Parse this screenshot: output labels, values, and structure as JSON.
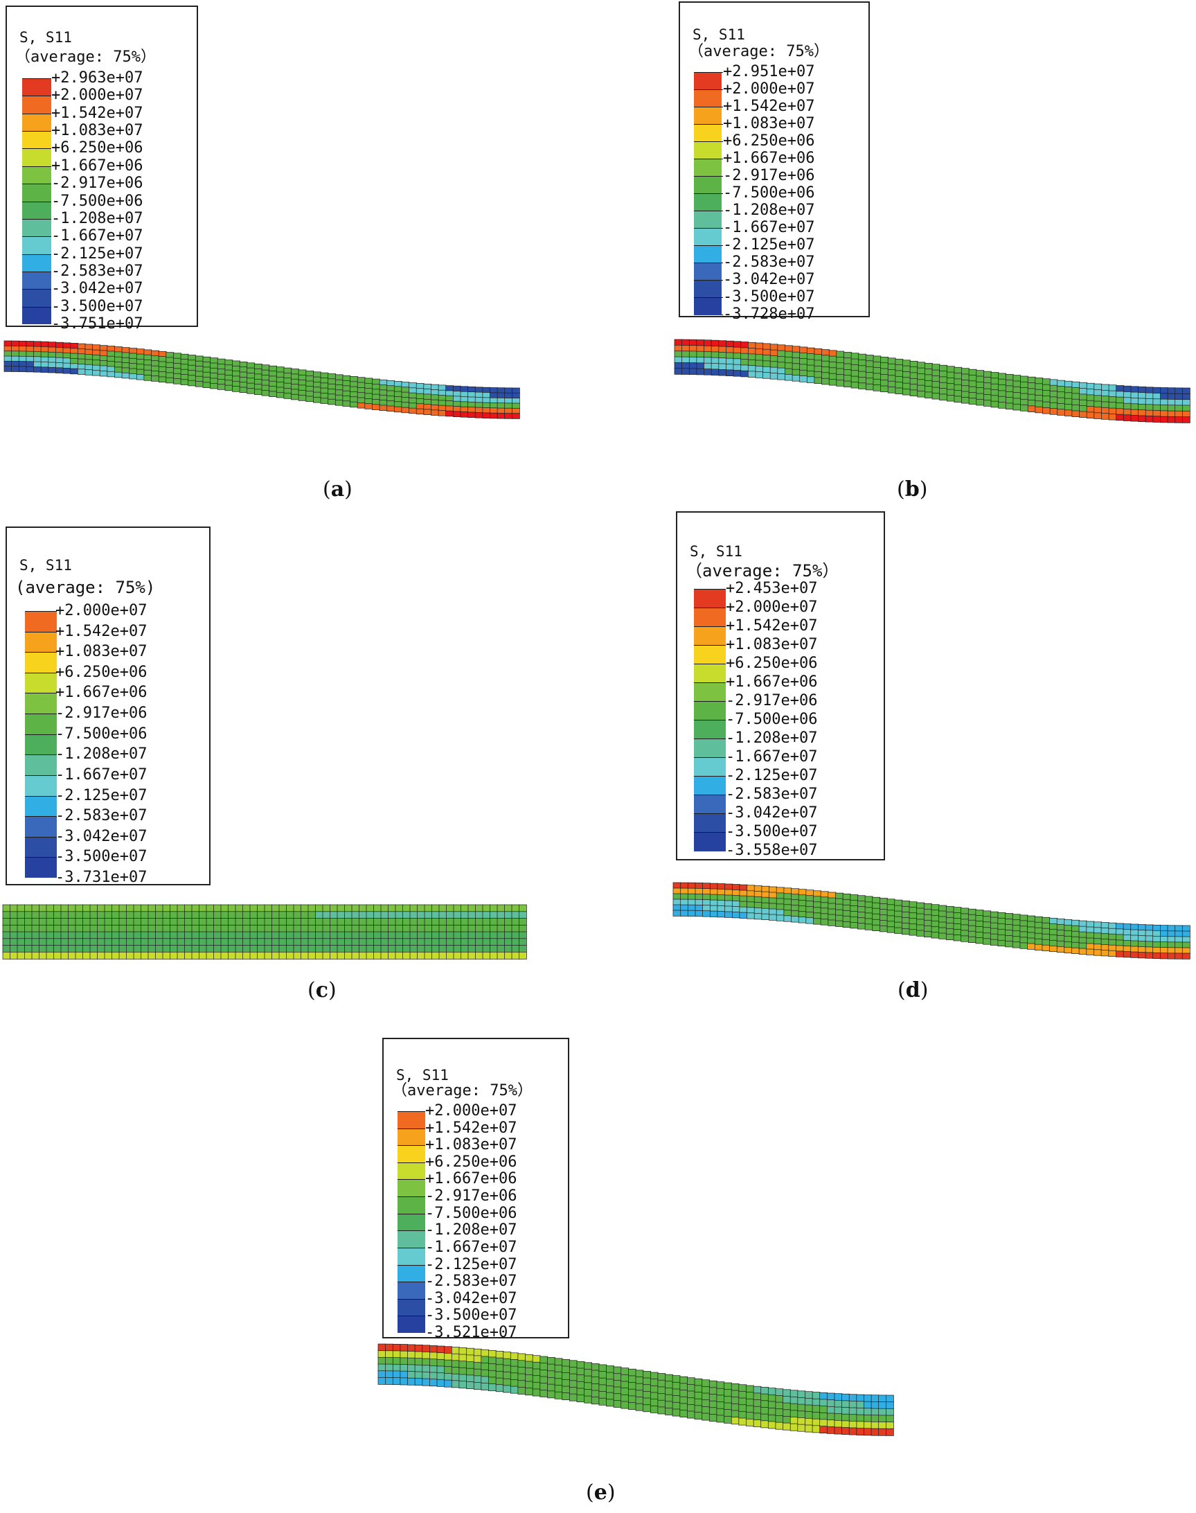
{
  "colors": [
    "#e8161b",
    "#e33a22",
    "#f06a22",
    "#f7a21d",
    "#f8d31e",
    "#c8dc2d",
    "#7ec241",
    "#5db345",
    "#4dae5c",
    "#5fbf9c",
    "#66cbd0",
    "#31aee3",
    "#3a68ba",
    "#2c4fa5",
    "#2741a0"
  ],
  "panels": [
    {
      "id": "a",
      "legend": {
        "title": "S, S11",
        "subtitle": "（average:  75%）",
        "labels": [
          "+2.963e+07",
          "+2.000e+07",
          "+1.542e+07",
          "+1.083e+07",
          "+6.250e+06",
          "+1.667e+06",
          "-2.917e+06",
          "-7.500e+06",
          "-1.208e+07",
          "-1.667e+07",
          "-2.125e+07",
          "-2.583e+07",
          "-3.042e+07",
          "-3.500e+07",
          "-3.751e+07"
        ]
      },
      "caption": "a"
    },
    {
      "id": "b",
      "legend": {
        "title": "S, S11",
        "subtitle": "（average:  75%）",
        "labels": [
          "+2.951e+07",
          "+2.000e+07",
          "+1.542e+07",
          "+1.083e+07",
          "+6.250e+06",
          "+1.667e+06",
          "-2.917e+06",
          "-7.500e+06",
          "-1.208e+07",
          "-1.667e+07",
          "-2.125e+07",
          "-2.583e+07",
          "-3.042e+07",
          "-3.500e+07",
          "-3.728e+07"
        ]
      },
      "caption": "b"
    },
    {
      "id": "c",
      "legend": {
        "title": "S, S11",
        "subtitle": "(average:  75%)",
        "labels": [
          "+2.000e+07",
          "+1.542e+07",
          "+1.083e+07",
          "+6.250e+06",
          "+1.667e+06",
          "-2.917e+06",
          "-7.500e+06",
          "-1.208e+07",
          "-1.667e+07",
          "-2.125e+07",
          "-2.583e+07",
          "-3.042e+07",
          "-3.500e+07",
          "-3.731e+07"
        ]
      },
      "caption": "c"
    },
    {
      "id": "d",
      "legend": {
        "title": "S, S11",
        "subtitle": "（average:  75%）",
        "labels": [
          "+2.453e+07",
          "+2.000e+07",
          "+1.542e+07",
          "+1.083e+07",
          "+6.250e+06",
          "+1.667e+06",
          "-2.917e+06",
          "-7.500e+06",
          "-1.208e+07",
          "-1.667e+07",
          "-2.125e+07",
          "-2.583e+07",
          "-3.042e+07",
          "-3.500e+07",
          "-3.558e+07"
        ]
      },
      "caption": "d"
    },
    {
      "id": "e",
      "legend": {
        "title": "S, S11",
        "subtitle": "（average:  75%）",
        "labels": [
          "+2.000e+07",
          "+1.542e+07",
          "+1.083e+07",
          "+6.250e+06",
          "+1.667e+06",
          "-2.917e+06",
          "-7.500e+06",
          "-1.208e+07",
          "-1.667e+07",
          "-2.125e+07",
          "-2.583e+07",
          "-3.042e+07",
          "-3.500e+07",
          "-3.521e+07"
        ]
      },
      "caption": "e"
    }
  ]
}
